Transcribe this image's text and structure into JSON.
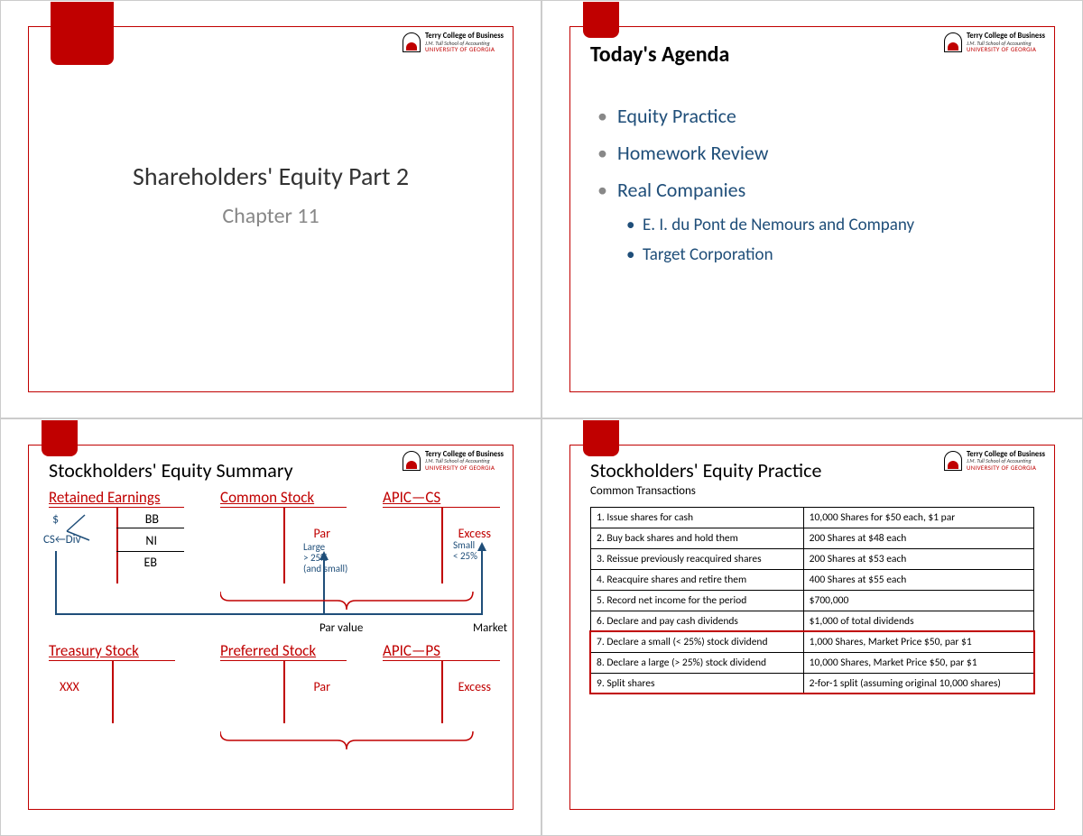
{
  "branding": {
    "line1": "Terry College of Business",
    "line2": "J.M. Tull School of Accounting",
    "line3": "UNIVERSITY OF GEORGIA",
    "accent_color": "#c00000"
  },
  "slide1": {
    "title": "Shareholders' Equity Part 2",
    "subtitle": "Chapter 11"
  },
  "slide2": {
    "title": "Today's Agenda",
    "items": [
      "Equity Practice",
      "Homework Review",
      "Real Companies"
    ],
    "subitems": [
      "E. I. du Pont de Nemours and Company",
      "Target Corporation"
    ]
  },
  "slide3": {
    "title": "Stockholders' Equity Summary",
    "accounts": {
      "re": {
        "name": "Retained Earnings",
        "rows_left": [
          "$",
          "CS←Div"
        ],
        "rows_right": [
          "BB",
          "NI",
          "EB"
        ]
      },
      "cs": {
        "name": "Common Stock",
        "label": "Par"
      },
      "apic_cs": {
        "name": "APIC—CS",
        "label": "Excess"
      },
      "ts": {
        "name": "Treasury Stock",
        "left": "XXX"
      },
      "ps": {
        "name": "Preferred Stock",
        "label": "Par"
      },
      "apic_ps": {
        "name": "APIC—PS",
        "label": "Excess"
      }
    },
    "annotations": {
      "large": "Large\n> 25%\n(and small)",
      "small": "Small\n< 25%",
      "parvalue": "Par value",
      "market": "Market"
    }
  },
  "slide4": {
    "title": "Stockholders' Equity Practice",
    "subtitle": "Common Transactions",
    "rows": [
      {
        "n": "1.",
        "a": "Issue shares for cash",
        "b": "10,000 Shares for $50 each, $1 par"
      },
      {
        "n": "2.",
        "a": "Buy back shares and hold them",
        "b": "200 Shares at $48 each"
      },
      {
        "n": "3.",
        "a": "Reissue previously reacquired shares",
        "b": "200 Shares at $53 each"
      },
      {
        "n": "4.",
        "a": "Reacquire shares and retire them",
        "b": "400 Shares at $55 each"
      },
      {
        "n": "5.",
        "a": "Record net income for the period",
        "b": "$700,000"
      },
      {
        "n": "6.",
        "a": "Declare and pay cash dividends",
        "b": "$1,000 of total dividends"
      },
      {
        "n": "7.",
        "a": "Declare a small (< 25%) stock dividend",
        "b": "1,000 Shares, Market Price $50, par $1"
      },
      {
        "n": "8.",
        "a": "Declare a large (> 25%) stock dividend",
        "b": "10,000 Shares, Market Price $50, par $1"
      },
      {
        "n": "9.",
        "a": "Split shares",
        "b": "2-for-1 split (assuming original 10,000 shares)"
      }
    ],
    "highlight_start": 6
  }
}
